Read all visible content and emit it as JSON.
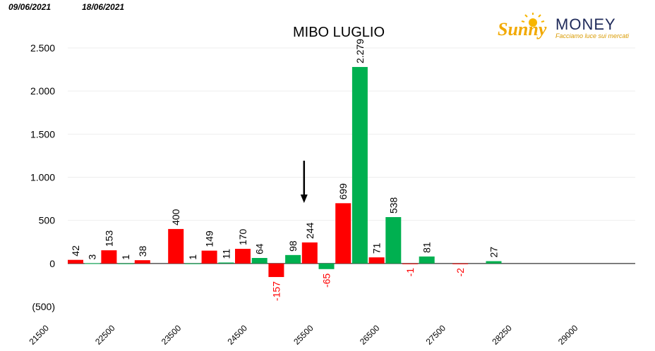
{
  "header": {
    "date_start": "09/06/2021",
    "date_end": "18/06/2021"
  },
  "logo": {
    "brand_sun": "Sunny",
    "brand_word": "MONEY",
    "tagline": "Facciamo luce sui mercati"
  },
  "colors": {
    "call": "#ff0000",
    "put": "#00b050",
    "negative_label": "#ff0000",
    "brand_orange": "#f2a900",
    "brand_navy": "#1f2a5a"
  },
  "chart_data": {
    "type": "bar",
    "title": "MIBO LUGLIO",
    "ylim": [
      -500,
      2500
    ],
    "yticks": [
      {
        "value": 2500,
        "label": "2.500"
      },
      {
        "value": 2000,
        "label": "2.000"
      },
      {
        "value": 1500,
        "label": "1.500"
      },
      {
        "value": 1000,
        "label": "1.000"
      },
      {
        "value": 500,
        "label": "500"
      },
      {
        "value": 0,
        "label": "0"
      },
      {
        "value": -500,
        "label": "(500)"
      }
    ],
    "xtick_labels": [
      "21500",
      "22500",
      "23500",
      "24500",
      "25500",
      "26500",
      "27500",
      "28250",
      "29000"
    ],
    "grid": true,
    "bars": [
      {
        "slot": 0,
        "color": "call",
        "value": 42,
        "label": "42"
      },
      {
        "slot": 1,
        "color": "put",
        "value": 3,
        "label": "3"
      },
      {
        "slot": 2,
        "color": "call",
        "value": 153,
        "label": "153"
      },
      {
        "slot": 3,
        "color": "put",
        "value": 1,
        "label": "1"
      },
      {
        "slot": 4,
        "color": "call",
        "value": 38,
        "label": "38"
      },
      {
        "slot": 6,
        "color": "call",
        "value": 400,
        "label": "400"
      },
      {
        "slot": 7,
        "color": "put",
        "value": 1,
        "label": "1"
      },
      {
        "slot": 8,
        "color": "call",
        "value": 149,
        "label": "149"
      },
      {
        "slot": 9,
        "color": "put",
        "value": 11,
        "label": "11"
      },
      {
        "slot": 10,
        "color": "call",
        "value": 170,
        "label": "170"
      },
      {
        "slot": 11,
        "color": "put",
        "value": 64,
        "label": "64"
      },
      {
        "slot": 12,
        "color": "call",
        "value": -157,
        "label": "-157"
      },
      {
        "slot": 13,
        "color": "put",
        "value": 98,
        "label": "98"
      },
      {
        "slot": 14,
        "color": "call",
        "value": 244,
        "label": "244"
      },
      {
        "slot": 15,
        "color": "put",
        "value": -65,
        "label": "-65"
      },
      {
        "slot": 16,
        "color": "call",
        "value": 699,
        "label": "699"
      },
      {
        "slot": 17,
        "color": "put",
        "value": 2279,
        "label": "2.279"
      },
      {
        "slot": 18,
        "color": "call",
        "value": 71,
        "label": "71"
      },
      {
        "slot": 19,
        "color": "put",
        "value": 538,
        "label": "538"
      },
      {
        "slot": 20,
        "color": "call",
        "value": -1,
        "label": "-1"
      },
      {
        "slot": 21,
        "color": "put",
        "value": 81,
        "label": "81"
      },
      {
        "slot": 23,
        "color": "call",
        "value": -2,
        "label": "-2"
      },
      {
        "slot": 25,
        "color": "put",
        "value": 27,
        "label": "27"
      }
    ],
    "marker": {
      "type": "down-arrow",
      "slot": 14
    }
  }
}
